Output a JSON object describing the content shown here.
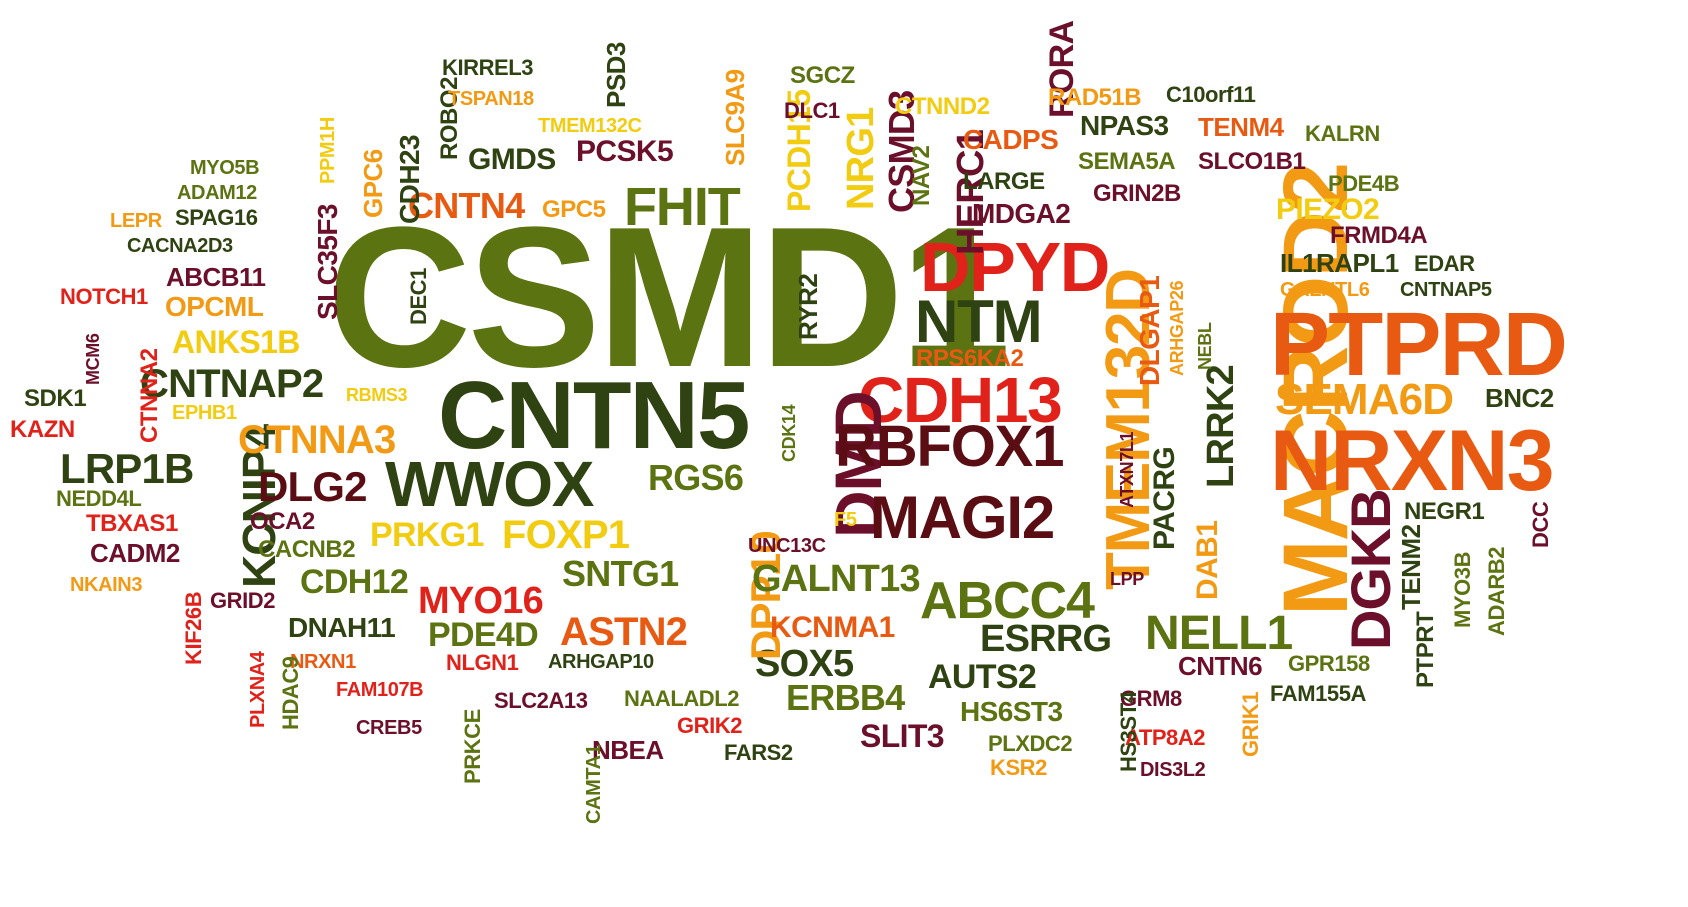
{
  "palette": {
    "olive": "#5b7310",
    "dark_green": "#2f4212",
    "maroon": "#6b0f2a",
    "brown": "#5a0d12",
    "red": "#e0221a",
    "orange_red": "#e85a12",
    "orange": "#f39a14",
    "yellow": "#f2cc10",
    "light_olive": "#8b9a16"
  },
  "words": [
    "CSMD1",
    "CNTN5",
    "MACROD2",
    "PTPRD",
    "NRXN3",
    "DPYD",
    "CDH13",
    "DMD",
    "TMEM132D",
    "MAGI2",
    "WWOX",
    "RBFOX1",
    "NTM",
    "FHIT",
    "DGKB",
    "ABCC4",
    "NELL1",
    "SEMA6D",
    "CNTNAP2",
    "LRP1B",
    "KCNIP4",
    "CTNNA3",
    "DLG2",
    "SOX5",
    "ESRRG",
    "MYO16",
    "ASTN2",
    "DPP10",
    "FOXP1",
    "PRKG1",
    "GALNT13",
    "SNTG1",
    "RGS6",
    "ERBB4",
    "CDH12",
    "PDE4D",
    "AUTS2",
    "KCNMA1",
    "CNTN4",
    "GMDS",
    "PCSK5",
    "OPCML",
    "ANKS1B",
    "ABCB11",
    "SLIT3",
    "LRRK2",
    "HERC1",
    "DAB1",
    "PACRG",
    "CSMD3",
    "NRG1",
    "PCDH15",
    "SLC35F3",
    "NPAS3",
    "TENM4",
    "CADPS",
    "MDGA2",
    "RORA",
    "DLGAP1",
    "IL1RAPL1",
    "FRMD4A",
    "PIEZO2",
    "CNTN6",
    "DNAH11",
    "HS6ST3",
    "RPS6KA2",
    "DEC1",
    "RYR2",
    "CDH23",
    "GPC6",
    "PSD3",
    "ROBO2",
    "SGCZ",
    "KIRREL3",
    "SLC9A9",
    "TSPAN18",
    "TMEM132C",
    "DLC1",
    "CTNND2",
    "RAD51B",
    "C10orf11",
    "NAV2",
    "LARGE",
    "SEMA5A",
    "GRIN2B",
    "SLCO1B1",
    "KALRN",
    "PDE4B",
    "EDAR",
    "GALNTL6",
    "CNTNAP5",
    "BNC2",
    "NEGR1",
    "DCC",
    "TENM2",
    "MYO3B",
    "ADARB2",
    "PTPRT",
    "GPR158",
    "FAM155A",
    "GRM8",
    "ATP8A2",
    "DIS3L2",
    "GRIK1",
    "HS3ST4",
    "PLXDC2",
    "KSR2",
    "LPP",
    "ATXN7L1",
    "ARHGAP26",
    "NEBL",
    "CDK14",
    "F5",
    "UNC13C",
    "GRIK2",
    "NBEA",
    "FARS2",
    "NAALADL2",
    "CAMTA1",
    "SLC2A13",
    "ARHGAP10",
    "NLGN1",
    "PRKCE",
    "CREB5",
    "FAM107B",
    "NRXN1",
    "HDAC9",
    "PLXNA4",
    "GRID2",
    "KIF26B",
    "NKAIN3",
    "CACNB2",
    "CADM2",
    "OCA2",
    "TBXAS1",
    "NEDD4L",
    "EPHB1",
    "RBMS3",
    "KAZN",
    "CTNNA2",
    "SDK1",
    "MCM6",
    "NOTCH1",
    "CACNA2D3",
    "LEPR",
    "SPAG16",
    "ADAM12",
    "MYO5B",
    "PPM1H",
    "GPC5"
  ]
}
